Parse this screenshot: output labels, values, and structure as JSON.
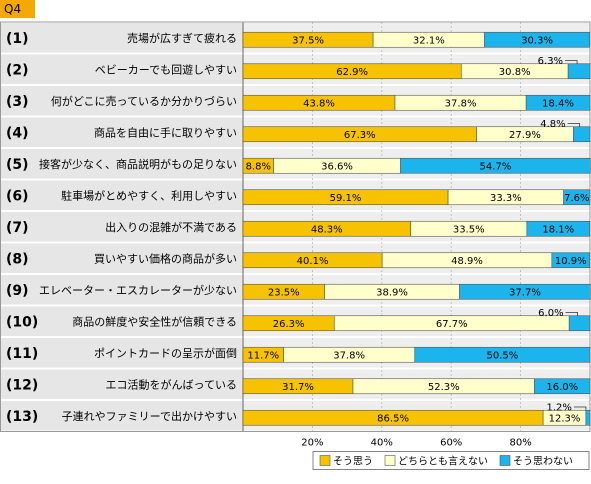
{
  "question_tag": "Q4",
  "chart_data": {
    "type": "bar",
    "orientation": "horizontal",
    "stacked": true,
    "percent_scale": true,
    "xlim": [
      0,
      100
    ],
    "x_ticks": [
      "20%",
      "40%",
      "60%",
      "80%"
    ],
    "x_tick_values": [
      20,
      40,
      60,
      80
    ],
    "grid": true,
    "legend_position": "bottom-right",
    "colors": {
      "s1": "#f7c200",
      "s2": "#ffffcc",
      "s3": "#1cb4ec",
      "row_band": "#eeeeee",
      "label_bg": "#e6e6e6",
      "tag_bg": "#f5a800",
      "num_text": "#000000"
    },
    "row_numbers": [
      "(1)",
      "(2)",
      "(3)",
      "(4)",
      "(5)",
      "(6)",
      "(7)",
      "(8)",
      "(9)",
      "(10)",
      "(11)",
      "(12)",
      "(13)"
    ],
    "categories": [
      "売場が広すぎて疲れる",
      "ベビーカーでも回遊しやすい",
      "何がどこに売っているか分かりづらい",
      "商品を自由に手に取りやすい",
      "接客が少なく、商品説明がもの足りない",
      "駐車場がとめやすく、利用しやすい",
      "出入りの混雑が不満である",
      "買いやすい価格の商品が多い",
      "エレベーター・エスカレーターが少ない",
      "商品の鮮度や安全性が信頼できる",
      "ポイントカードの呈示が面倒",
      "エコ活動をがんばっている",
      "子連れやファミリーで出かけやすい"
    ],
    "series": [
      {
        "name": "そう思う",
        "values": [
          37.5,
          62.9,
          43.8,
          67.3,
          8.8,
          59.1,
          48.3,
          40.1,
          23.5,
          26.3,
          11.7,
          31.7,
          86.5
        ],
        "labels": [
          "37.5%",
          "62.9%",
          "43.8%",
          "67.3%",
          "8.8%",
          "59.1%",
          "48.3%",
          "40.1%",
          "23.5%",
          "26.3%",
          "11.7%",
          "31.7%",
          "86.5%"
        ]
      },
      {
        "name": "どちらとも言えない",
        "values": [
          32.1,
          30.8,
          37.8,
          27.9,
          36.6,
          33.3,
          33.5,
          48.9,
          38.9,
          67.7,
          37.8,
          52.3,
          12.3
        ],
        "labels": [
          "32.1%",
          "30.8%",
          "37.8%",
          "27.9%",
          "36.6%",
          "33.3%",
          "33.5%",
          "48.9%",
          "38.9%",
          "67.7%",
          "37.8%",
          "52.3%",
          "12.3%"
        ]
      },
      {
        "name": "そう思わない",
        "values": [
          30.3,
          6.3,
          18.4,
          4.8,
          54.7,
          7.6,
          18.1,
          10.9,
          37.7,
          6.0,
          50.5,
          16.0,
          1.2
        ],
        "labels": [
          "30.3%",
          "6.3%",
          "18.4%",
          "4.8%",
          "54.7%",
          "7.6%",
          "18.1%",
          "10.9%",
          "37.7%",
          "6.0%",
          "50.5%",
          "16.0%",
          "1.2%"
        ],
        "callout_rows": [
          1,
          3,
          9,
          12
        ]
      }
    ]
  }
}
